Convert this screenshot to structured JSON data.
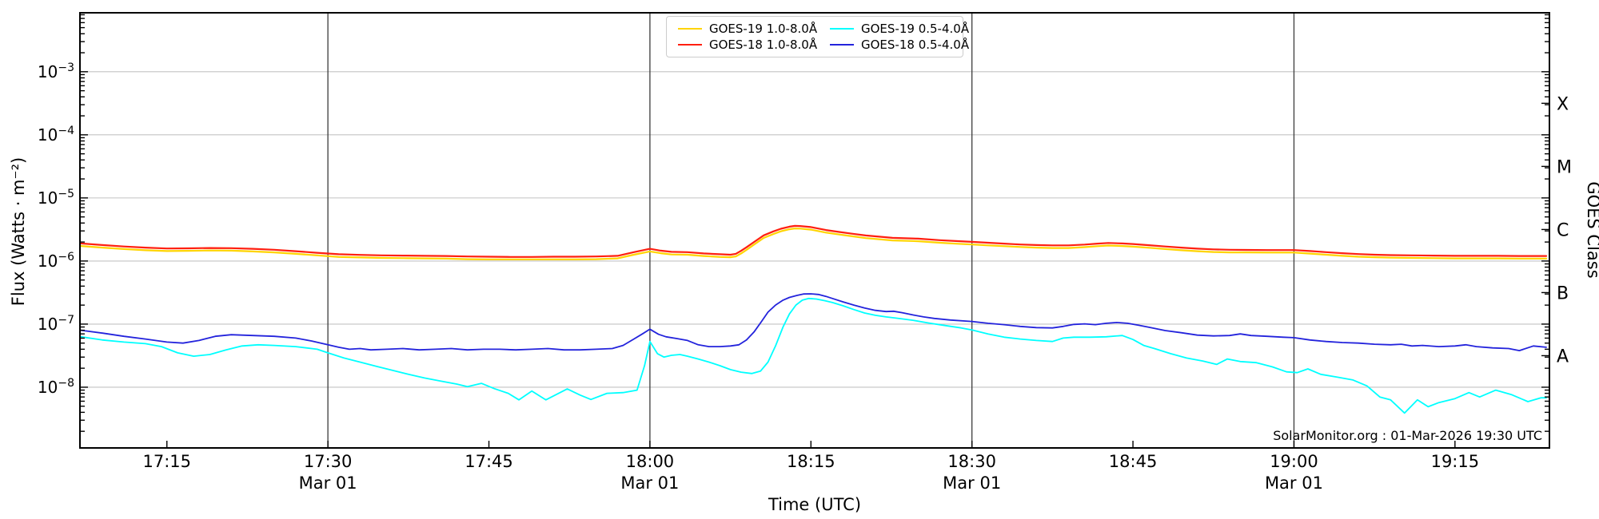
{
  "chart_data": {
    "type": "line",
    "xlabel": "Time (UTC)",
    "ylabel": "Flux (Watts · m⁻²)",
    "ylabel_right": "GOES Class",
    "annotation": "SolarMonitor.org : 01-Mar-2026 19:30 UTC",
    "grid": "horizontal-decades",
    "legend_position": "top-center",
    "x_axis": {
      "unit": "minutes after 17:00 UTC",
      "min": 6.9,
      "max": 143.8,
      "ticks": [
        {
          "m": 15,
          "label": "17:15"
        },
        {
          "m": 30,
          "label": "17:30",
          "sub": "Mar 01"
        },
        {
          "m": 45,
          "label": "17:45"
        },
        {
          "m": 60,
          "label": "18:00",
          "sub": "Mar 01"
        },
        {
          "m": 75,
          "label": "18:15"
        },
        {
          "m": 90,
          "label": "18:30",
          "sub": "Mar 01"
        },
        {
          "m": 105,
          "label": "18:45"
        },
        {
          "m": 120,
          "label": "19:00",
          "sub": "Mar 01"
        },
        {
          "m": 135,
          "label": "19:15"
        }
      ],
      "date_lines": [
        30,
        60,
        90,
        120
      ]
    },
    "y_axis": {
      "scale": "log",
      "min": 1.09e-09,
      "max": 0.0086,
      "tick_exponents": [
        -3,
        -4,
        -5,
        -6,
        -7,
        -8
      ]
    },
    "right_axis": {
      "classes": [
        {
          "label": "X",
          "flux": 0.000316
        },
        {
          "label": "M",
          "flux": 3.16e-05
        },
        {
          "label": "C",
          "flux": 3.16e-06
        },
        {
          "label": "B",
          "flux": 3.16e-07
        },
        {
          "label": "A",
          "flux": 3.16e-08
        }
      ]
    },
    "colors": {
      "grid": "#c3c3c3",
      "axis": "#000000",
      "date_line": "#3c3c3c",
      "goes19_long": "#ffd400",
      "goes18_long": "#ff1f0f",
      "goes19_short": "#00ffff",
      "goes18_short": "#2323dc"
    },
    "legend": {
      "items": [
        {
          "label": "GOES-19 1.0-8.0Å",
          "color": "#ffd400",
          "series": "goes19-long"
        },
        {
          "label": "GOES-19 0.5-4.0Å",
          "color": "#00ffff",
          "series": "goes19-short"
        },
        {
          "label": "GOES-18 1.0-8.0Å",
          "color": "#ff1f0f",
          "series": "goes18-long"
        },
        {
          "label": "GOES-18 0.5-4.0Å",
          "color": "#2323dc",
          "series": "goes18-short"
        }
      ]
    },
    "series": [
      {
        "id": "goes19-long",
        "name": "GOES-19 1.0-8.0Å",
        "color": "#ffd400",
        "width": 2.2,
        "scale": 1e-06,
        "t": [
          7,
          9,
          11,
          13,
          15,
          17,
          19,
          21,
          23,
          25,
          27,
          29,
          31,
          33,
          35,
          37,
          39,
          41,
          43,
          45,
          47,
          49,
          51,
          53,
          55,
          57,
          58.5,
          60,
          61,
          62,
          63.5,
          65,
          66.5,
          67.5,
          68,
          68.5,
          69,
          69.7,
          70.6,
          71.5,
          72.2,
          73,
          73.5,
          74,
          75,
          76.4,
          77.7,
          78.9,
          80.1,
          82.6,
          85,
          87,
          88.5,
          90,
          91.5,
          93,
          94.5,
          96,
          97.5,
          99,
          100.5,
          101.7,
          102.7,
          104,
          105,
          106.5,
          108,
          109.5,
          111,
          112.5,
          114,
          115.5,
          117.5,
          120,
          121.5,
          123,
          124.5,
          126,
          127.5,
          129,
          131,
          133,
          135,
          137,
          139,
          141,
          143.5
        ],
        "v": [
          1.73,
          1.63,
          1.55,
          1.48,
          1.44,
          1.45,
          1.47,
          1.46,
          1.42,
          1.37,
          1.3,
          1.23,
          1.16,
          1.14,
          1.12,
          1.11,
          1.1,
          1.09,
          1.07,
          1.06,
          1.06,
          1.06,
          1.06,
          1.06,
          1.07,
          1.1,
          1.26,
          1.42,
          1.33,
          1.27,
          1.26,
          1.2,
          1.16,
          1.15,
          1.18,
          1.32,
          1.5,
          1.82,
          2.32,
          2.68,
          2.96,
          3.19,
          3.28,
          3.26,
          3.14,
          2.82,
          2.62,
          2.46,
          2.31,
          2.12,
          2.06,
          1.95,
          1.88,
          1.83,
          1.77,
          1.72,
          1.67,
          1.63,
          1.61,
          1.61,
          1.66,
          1.72,
          1.76,
          1.73,
          1.69,
          1.62,
          1.55,
          1.48,
          1.43,
          1.39,
          1.37,
          1.37,
          1.36,
          1.36,
          1.31,
          1.26,
          1.21,
          1.17,
          1.15,
          1.13,
          1.12,
          1.11,
          1.1,
          1.1,
          1.1,
          1.09,
          1.09
        ]
      },
      {
        "id": "goes18-long",
        "name": "GOES-18 1.0-8.0Å",
        "color": "#ff1f0f",
        "width": 2.2,
        "scale": 1e-06,
        "t": [
          7,
          9,
          11,
          13,
          15,
          17,
          19,
          21,
          23,
          25,
          27,
          29,
          31,
          33,
          35,
          37,
          39,
          41,
          43,
          45,
          47,
          49,
          51,
          53,
          55,
          57,
          58.5,
          60,
          61,
          62,
          63.5,
          65,
          66.5,
          67.5,
          68,
          68.5,
          69,
          69.7,
          70.6,
          71.5,
          72.2,
          73,
          73.5,
          74,
          75,
          76.4,
          77.7,
          78.9,
          80.1,
          82.6,
          85,
          87,
          88.5,
          90,
          91.5,
          93,
          94.5,
          96,
          97.5,
          99,
          100.5,
          101.7,
          102.7,
          104,
          105,
          106.5,
          108,
          109.5,
          111,
          112.5,
          114,
          115.5,
          117.5,
          120,
          121.5,
          123,
          124.5,
          126,
          127.5,
          129,
          131,
          133,
          135,
          137,
          139,
          141,
          143.5
        ],
        "v": [
          1.9,
          1.79,
          1.7,
          1.63,
          1.58,
          1.59,
          1.61,
          1.6,
          1.56,
          1.51,
          1.43,
          1.35,
          1.28,
          1.25,
          1.23,
          1.22,
          1.21,
          1.2,
          1.18,
          1.17,
          1.16,
          1.16,
          1.17,
          1.17,
          1.18,
          1.21,
          1.38,
          1.56,
          1.46,
          1.4,
          1.38,
          1.32,
          1.28,
          1.26,
          1.3,
          1.45,
          1.65,
          2.0,
          2.55,
          2.95,
          3.25,
          3.5,
          3.6,
          3.58,
          3.45,
          3.1,
          2.88,
          2.7,
          2.54,
          2.33,
          2.26,
          2.14,
          2.07,
          2.01,
          1.95,
          1.89,
          1.83,
          1.79,
          1.77,
          1.77,
          1.82,
          1.89,
          1.93,
          1.9,
          1.86,
          1.78,
          1.7,
          1.63,
          1.57,
          1.53,
          1.51,
          1.5,
          1.49,
          1.49,
          1.44,
          1.38,
          1.33,
          1.29,
          1.26,
          1.24,
          1.23,
          1.22,
          1.21,
          1.21,
          1.21,
          1.2,
          1.2
        ]
      },
      {
        "id": "goes19-short",
        "name": "GOES-19 0.5-4.0Å",
        "color": "#00ffff",
        "width": 1.8,
        "scale": 1e-08,
        "t": [
          7,
          9,
          11,
          13,
          14.5,
          16,
          17.5,
          19,
          20.5,
          22,
          23.5,
          25,
          27,
          29,
          30,
          31.5,
          33,
          34.5,
          36,
          37.5,
          39,
          40.5,
          42,
          43,
          44.3,
          45.5,
          46.8,
          47.8,
          49,
          50.3,
          51.5,
          52.3,
          53.5,
          54.5,
          56,
          57.5,
          58.8,
          59.5,
          60,
          60.7,
          61.3,
          62,
          62.8,
          63.5,
          64.5,
          65.5,
          66.5,
          67.5,
          68.5,
          69.5,
          70.3,
          71,
          71.7,
          72.4,
          73,
          73.6,
          74.2,
          74.8,
          75.5,
          76.3,
          77,
          78,
          79,
          80,
          81,
          82,
          83,
          84.5,
          86,
          87.5,
          89,
          90,
          91.5,
          93,
          94.5,
          96,
          97.5,
          98.5,
          99.5,
          101,
          102.5,
          104,
          105,
          106,
          107,
          108.5,
          110,
          111.5,
          112.8,
          113.8,
          115,
          116.5,
          118,
          119.3,
          120.3,
          121.3,
          122.5,
          124,
          125.5,
          126.8,
          128,
          129,
          130.3,
          131.5,
          132.5,
          133.5,
          135,
          136.3,
          137.3,
          138.8,
          140.3,
          141.8,
          143,
          143.5
        ],
        "v": [
          6.3,
          5.6,
          5.2,
          4.9,
          4.4,
          3.5,
          3.1,
          3.3,
          3.9,
          4.5,
          4.7,
          4.6,
          4.4,
          4.0,
          3.5,
          2.9,
          2.5,
          2.15,
          1.85,
          1.6,
          1.4,
          1.25,
          1.12,
          1.02,
          1.15,
          0.95,
          0.8,
          0.63,
          0.87,
          0.63,
          0.8,
          0.94,
          0.75,
          0.64,
          0.8,
          0.82,
          0.9,
          2.2,
          5.3,
          3.4,
          3.0,
          3.2,
          3.3,
          3.1,
          2.8,
          2.5,
          2.2,
          1.9,
          1.73,
          1.65,
          1.8,
          2.5,
          4.5,
          9.0,
          14.5,
          20.0,
          24.0,
          25.5,
          25.0,
          23.5,
          22.0,
          19.5,
          17.0,
          15.0,
          13.8,
          13.0,
          12.4,
          11.5,
          10.4,
          9.5,
          8.7,
          8.1,
          7.0,
          6.2,
          5.8,
          5.5,
          5.3,
          6.0,
          6.2,
          6.2,
          6.3,
          6.6,
          5.7,
          4.6,
          4.1,
          3.4,
          2.9,
          2.6,
          2.3,
          2.8,
          2.55,
          2.45,
          2.1,
          1.75,
          1.7,
          1.95,
          1.6,
          1.45,
          1.3,
          1.05,
          0.7,
          0.63,
          0.39,
          0.63,
          0.49,
          0.57,
          0.66,
          0.82,
          0.7,
          0.9,
          0.76,
          0.59,
          0.68,
          0.68
        ]
      },
      {
        "id": "goes18-short",
        "name": "GOES-18 0.5-4.0Å",
        "color": "#2323dc",
        "width": 1.8,
        "scale": 1e-08,
        "t": [
          7,
          9,
          11,
          13,
          15,
          16.5,
          18,
          19.5,
          21,
          23,
          25,
          27,
          28.5,
          30,
          31,
          32,
          33,
          34,
          35.5,
          37,
          38.5,
          40,
          41.5,
          43,
          44.5,
          46,
          47.5,
          49,
          50.5,
          52,
          53.5,
          55,
          56.5,
          57.5,
          58.5,
          59.3,
          60,
          60.8,
          61.5,
          62.5,
          63.5,
          64.5,
          65.5,
          66.5,
          67.5,
          68.3,
          69,
          69.7,
          70.4,
          71,
          71.7,
          72.4,
          73,
          73.7,
          74.3,
          75,
          75.7,
          76.4,
          77,
          78,
          79,
          80,
          81,
          82,
          82.7,
          83.5,
          84.5,
          85.5,
          86.5,
          88,
          90,
          91.5,
          93,
          94.5,
          96,
          97.5,
          98.5,
          99.5,
          100.5,
          101.5,
          102.5,
          103.5,
          104.5,
          105.5,
          106.5,
          108,
          109.5,
          111,
          112.5,
          114,
          115,
          116,
          117.5,
          119,
          120,
          121.5,
          123,
          124.5,
          126,
          127.5,
          129,
          130,
          131,
          132,
          133.5,
          135,
          136,
          137,
          138.5,
          140,
          141,
          142.3,
          143.5
        ],
        "v": [
          8.0,
          7.2,
          6.4,
          5.8,
          5.2,
          5.0,
          5.5,
          6.4,
          6.8,
          6.6,
          6.4,
          6.0,
          5.4,
          4.7,
          4.3,
          4.0,
          4.1,
          3.9,
          4.0,
          4.1,
          3.9,
          4.0,
          4.1,
          3.9,
          4.0,
          4.0,
          3.9,
          4.0,
          4.1,
          3.9,
          3.9,
          4.0,
          4.1,
          4.6,
          5.8,
          7.0,
          8.3,
          6.9,
          6.3,
          5.9,
          5.5,
          4.7,
          4.4,
          4.4,
          4.5,
          4.7,
          5.6,
          7.5,
          11.0,
          15.5,
          20.0,
          24.0,
          26.5,
          28.5,
          30.0,
          30.2,
          29.5,
          27.5,
          25.5,
          22.5,
          20.0,
          18.0,
          16.5,
          15.8,
          16.0,
          15.2,
          14.0,
          13.0,
          12.3,
          11.6,
          11.0,
          10.3,
          9.8,
          9.2,
          8.8,
          8.7,
          9.2,
          9.9,
          10.1,
          9.8,
          10.3,
          10.6,
          10.3,
          9.6,
          8.9,
          7.9,
          7.3,
          6.7,
          6.5,
          6.6,
          7.0,
          6.6,
          6.4,
          6.2,
          6.1,
          5.6,
          5.3,
          5.1,
          5.0,
          4.8,
          4.7,
          4.8,
          4.5,
          4.6,
          4.4,
          4.5,
          4.7,
          4.4,
          4.2,
          4.1,
          3.8,
          4.5,
          4.3
        ]
      }
    ]
  }
}
